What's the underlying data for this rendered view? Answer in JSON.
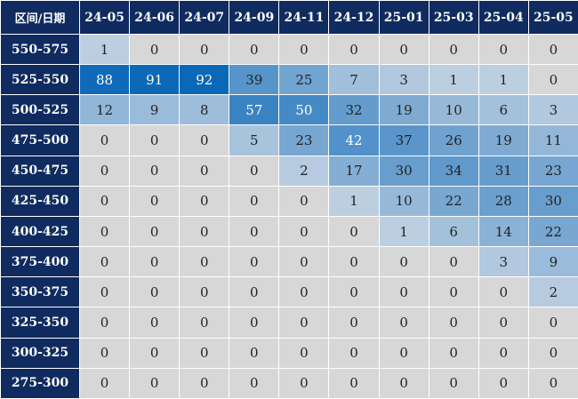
{
  "corner_label": "区间/日期",
  "colors": {
    "header_bg": "#0f2b5f",
    "zero_cell": "#d7d7d7",
    "scale_low": "#c9d6e4",
    "scale_high": "#0a68b8"
  },
  "chart_data": {
    "type": "heatmap",
    "title": "",
    "columns": [
      "24-05",
      "24-06",
      "24-07",
      "24-09",
      "24-11",
      "24-12",
      "25-01",
      "25-03",
      "25-04",
      "25-05"
    ],
    "rows": [
      "550-575",
      "525-550",
      "500-525",
      "475-500",
      "450-475",
      "425-450",
      "400-425",
      "375-400",
      "350-375",
      "325-350",
      "300-325",
      "275-300"
    ],
    "values": [
      [
        1,
        0,
        0,
        0,
        0,
        0,
        0,
        0,
        0,
        0
      ],
      [
        88,
        91,
        92,
        39,
        25,
        7,
        3,
        1,
        1,
        0
      ],
      [
        12,
        9,
        8,
        57,
        50,
        32,
        19,
        10,
        6,
        3
      ],
      [
        0,
        0,
        0,
        5,
        23,
        42,
        37,
        26,
        19,
        11
      ],
      [
        0,
        0,
        0,
        0,
        2,
        17,
        30,
        34,
        31,
        23
      ],
      [
        0,
        0,
        0,
        0,
        0,
        1,
        10,
        22,
        28,
        30
      ],
      [
        0,
        0,
        0,
        0,
        0,
        0,
        1,
        6,
        14,
        22
      ],
      [
        0,
        0,
        0,
        0,
        0,
        0,
        0,
        0,
        3,
        9
      ],
      [
        0,
        0,
        0,
        0,
        0,
        0,
        0,
        0,
        0,
        2
      ],
      [
        0,
        0,
        0,
        0,
        0,
        0,
        0,
        0,
        0,
        0
      ],
      [
        0,
        0,
        0,
        0,
        0,
        0,
        0,
        0,
        0,
        0
      ],
      [
        0,
        0,
        0,
        0,
        0,
        0,
        0,
        0,
        0,
        0
      ]
    ]
  }
}
